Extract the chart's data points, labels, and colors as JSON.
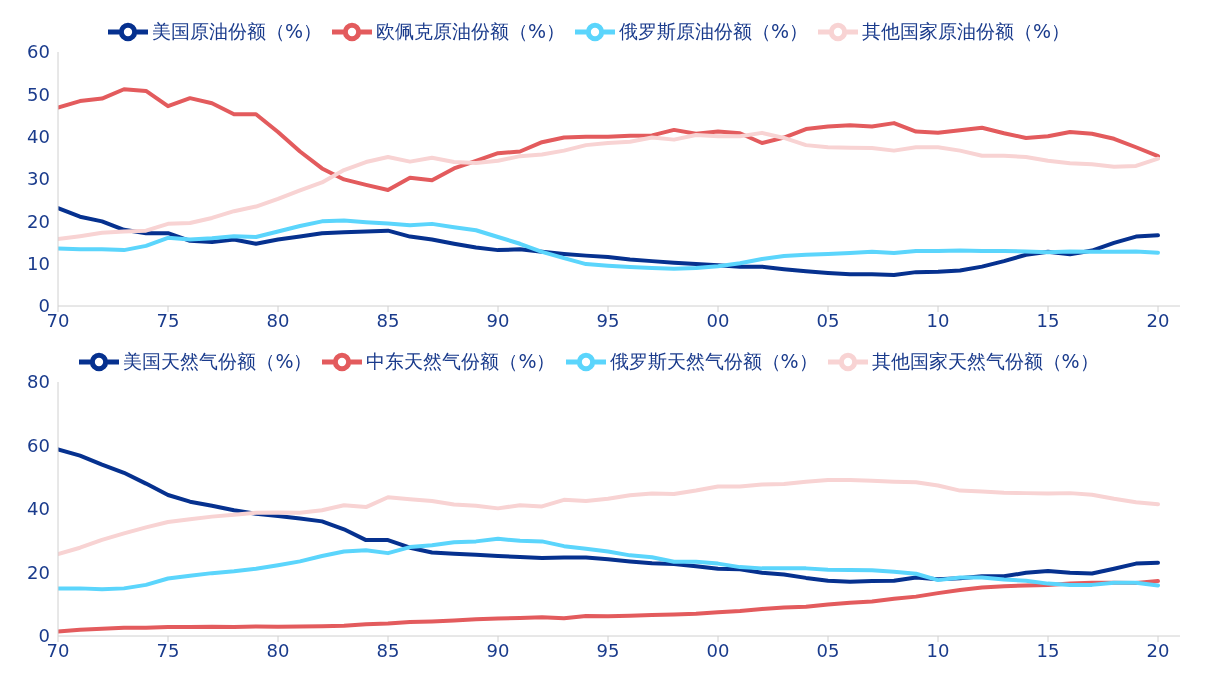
{
  "chart_data": [
    {
      "type": "line",
      "legend": "top",
      "grid": false,
      "marker": "none",
      "line_style": "solid",
      "x": [
        1970,
        1971,
        1972,
        1973,
        1974,
        1975,
        1976,
        1977,
        1978,
        1979,
        1980,
        1981,
        1982,
        1983,
        1984,
        1985,
        1986,
        1987,
        1988,
        1989,
        1990,
        1991,
        1992,
        1993,
        1994,
        1995,
        1996,
        1997,
        1998,
        1999,
        2000,
        2001,
        2002,
        2003,
        2004,
        2005,
        2006,
        2007,
        2008,
        2009,
        2010,
        2011,
        2012,
        2013,
        2014,
        2015,
        2016,
        2017,
        2018,
        2019,
        2020
      ],
      "xlim": [
        1970,
        2021
      ],
      "xticks": [
        {
          "value": 1970,
          "label": "70"
        },
        {
          "value": 1975,
          "label": "75"
        },
        {
          "value": 1980,
          "label": "80"
        },
        {
          "value": 1985,
          "label": "85"
        },
        {
          "value": 1990,
          "label": "90"
        },
        {
          "value": 1995,
          "label": "95"
        },
        {
          "value": 2000,
          "label": "00"
        },
        {
          "value": 2005,
          "label": "05"
        },
        {
          "value": 2010,
          "label": "10"
        },
        {
          "value": 2015,
          "label": "15"
        },
        {
          "value": 2020,
          "label": "20"
        }
      ],
      "ylim": [
        0,
        60
      ],
      "yticks": [
        0,
        10,
        20,
        30,
        40,
        50,
        60
      ],
      "series": [
        {
          "name": "美国原油份额（%）",
          "color": "#06318f",
          "values": [
            23.1,
            21.1,
            20,
            18,
            17.2,
            17.2,
            15.4,
            15.1,
            15.7,
            14.7,
            15.7,
            16.4,
            17.2,
            17.4,
            17.6,
            17.8,
            16.4,
            15.7,
            14.7,
            13.8,
            13.2,
            13.4,
            12.8,
            12.3,
            11.9,
            11.6,
            11.0,
            10.6,
            10.2,
            9.9,
            9.6,
            9.3,
            9.3,
            8.7,
            8.2,
            7.8,
            7.5,
            7.5,
            7.3,
            8.0,
            8.1,
            8.4,
            9.3,
            10.6,
            12.1,
            12.8,
            12.2,
            13.1,
            14.9,
            16.4,
            16.7
          ]
        },
        {
          "name": "欧佩克原油份额（%）",
          "color": "#e35b5d",
          "values": [
            46.9,
            48.4,
            49,
            51.2,
            50.8,
            47.2,
            49.1,
            47.9,
            45.3,
            45.3,
            41.1,
            36.5,
            32.5,
            29.9,
            28.6,
            27.4,
            30.3,
            29.7,
            32.5,
            34.3,
            36.1,
            36.5,
            38.7,
            39.8,
            40,
            40,
            40.2,
            40.3,
            41.6,
            40.7,
            41.2,
            40.8,
            38.5,
            39.8,
            41.8,
            42.4,
            42.7,
            42.4,
            43.2,
            41.2,
            40.9,
            41.5,
            42.1,
            40.8,
            39.7,
            40.1,
            41.1,
            40.7,
            39.5,
            37.5,
            35.4
          ]
        },
        {
          "name": "俄罗斯原油份额（%）",
          "color": "#5bd5fc",
          "values": [
            13.6,
            13.4,
            13.4,
            13.2,
            14.2,
            16.1,
            15.7,
            16,
            16.5,
            16.3,
            17.6,
            18.9,
            20,
            20.2,
            19.8,
            19.5,
            19.1,
            19.4,
            18.6,
            17.9,
            16.3,
            14.7,
            12.8,
            11.3,
            9.9,
            9.5,
            9.2,
            9.0,
            8.8,
            9.0,
            9.4,
            10.1,
            11.1,
            11.8,
            12.1,
            12.3,
            12.5,
            12.8,
            12.5,
            13.0,
            13.0,
            13.1,
            13.0,
            13.0,
            12.9,
            12.7,
            12.9,
            12.8,
            12.8,
            12.9,
            12.6
          ]
        },
        {
          "name": "其他国家原油份额（%）",
          "color": "#f8d3d3",
          "values": [
            15.8,
            16.5,
            17.3,
            17.6,
            17.8,
            19.4,
            19.6,
            20.8,
            22.4,
            23.5,
            25.3,
            27.3,
            29.2,
            32.1,
            34,
            35.2,
            34.1,
            35,
            34,
            33.8,
            34.3,
            35.4,
            35.8,
            36.7,
            38,
            38.5,
            38.8,
            39.8,
            39.3,
            40.4,
            40.1,
            40.1,
            40.9,
            39.7,
            38.0,
            37.5,
            37.4,
            37.3,
            36.7,
            37.5,
            37.5,
            36.7,
            35.5,
            35.5,
            35.2,
            34.3,
            33.7,
            33.5,
            32.9,
            33.1,
            34.8
          ]
        }
      ]
    },
    {
      "type": "line",
      "legend": "top",
      "grid": false,
      "marker": "none",
      "line_style": "solid",
      "x": [
        1970,
        1971,
        1972,
        1973,
        1974,
        1975,
        1976,
        1977,
        1978,
        1979,
        1980,
        1981,
        1982,
        1983,
        1984,
        1985,
        1986,
        1987,
        1988,
        1989,
        1990,
        1991,
        1992,
        1993,
        1994,
        1995,
        1996,
        1997,
        1998,
        1999,
        2000,
        2001,
        2002,
        2003,
        2004,
        2005,
        2006,
        2007,
        2008,
        2009,
        2010,
        2011,
        2012,
        2013,
        2014,
        2015,
        2016,
        2017,
        2018,
        2019,
        2020
      ],
      "xlim": [
        1970,
        2021
      ],
      "xticks": [
        {
          "value": 1970,
          "label": "70"
        },
        {
          "value": 1975,
          "label": "75"
        },
        {
          "value": 1980,
          "label": "80"
        },
        {
          "value": 1985,
          "label": "85"
        },
        {
          "value": 1990,
          "label": "90"
        },
        {
          "value": 1995,
          "label": "95"
        },
        {
          "value": 2000,
          "label": "00"
        },
        {
          "value": 2005,
          "label": "05"
        },
        {
          "value": 2010,
          "label": "10"
        },
        {
          "value": 2015,
          "label": "15"
        },
        {
          "value": 2020,
          "label": "20"
        }
      ],
      "ylim": [
        0,
        80
      ],
      "yticks": [
        0,
        20,
        40,
        60,
        80
      ],
      "series": [
        {
          "name": "美国天然气份额（%）",
          "color": "#06318f",
          "values": [
            58.8,
            56.8,
            54,
            51.4,
            48,
            44.4,
            42.3,
            41,
            39.6,
            38.5,
            37.8,
            37,
            36.1,
            33.6,
            30.2,
            30.2,
            27.8,
            26.3,
            25.9,
            25.6,
            25.2,
            24.9,
            24.6,
            24.7,
            24.7,
            24.2,
            23.5,
            22.9,
            22.7,
            22,
            21.2,
            21,
            19.9,
            19.4,
            18.3,
            17.4,
            17.1,
            17.3,
            17.4,
            18.4,
            17.9,
            18.2,
            18.8,
            18.8,
            19.9,
            20.5,
            19.9,
            19.7,
            21.2,
            22.8,
            23.1
          ]
        },
        {
          "name": "中东天然气份额（%）",
          "color": "#e35b5d",
          "values": [
            1.4,
            2,
            2.3,
            2.6,
            2.6,
            2.8,
            2.8,
            2.9,
            2.8,
            3,
            2.9,
            3,
            3.1,
            3.2,
            3.7,
            3.9,
            4.4,
            4.6,
            4.9,
            5.3,
            5.5,
            5.7,
            5.9,
            5.6,
            6.3,
            6.2,
            6.4,
            6.6,
            6.8,
            7,
            7.5,
            7.9,
            8.5,
            9,
            9.2,
            9.9,
            10.5,
            10.9,
            11.7,
            12.4,
            13.5,
            14.5,
            15.3,
            15.7,
            15.9,
            16.1,
            16.5,
            16.8,
            16.8,
            16.7,
            17.3
          ]
        },
        {
          "name": "俄罗斯天然气份额（%）",
          "color": "#5bd5fc",
          "values": [
            15,
            15,
            14.7,
            15,
            16.1,
            18.1,
            19,
            19.8,
            20.4,
            21.2,
            22.3,
            23.5,
            25.2,
            26.6,
            27,
            26.1,
            28,
            28.6,
            29.5,
            29.8,
            30.6,
            30,
            29.8,
            28.3,
            27.5,
            26.6,
            25.4,
            24.8,
            23.4,
            23.4,
            22.8,
            21.7,
            21.3,
            21.3,
            21.3,
            20.9,
            20.8,
            20.7,
            20.2,
            19.6,
            17.6,
            18.4,
            18.4,
            17.8,
            17.4,
            16.5,
            16.1,
            16.1,
            16.8,
            16.8,
            15.9
          ]
        },
        {
          "name": "其他国家天然气份额（%）",
          "color": "#f8d3d3",
          "values": [
            25.8,
            27.8,
            30.3,
            32.3,
            34.2,
            35.9,
            36.8,
            37.6,
            38.2,
            38.8,
            38.9,
            38.8,
            39.6,
            41.2,
            40.6,
            43.7,
            43.1,
            42.5,
            41.4,
            41,
            40.2,
            41.2,
            40.8,
            42.9,
            42.5,
            43.2,
            44.3,
            44.9,
            44.7,
            45.8,
            47.1,
            47.1,
            47.7,
            47.9,
            48.6,
            49.1,
            49.1,
            48.9,
            48.6,
            48.4,
            47.4,
            45.8,
            45.5,
            45.1,
            45,
            44.9,
            45,
            44.5,
            43.2,
            42.1,
            41.5
          ]
        }
      ]
    }
  ]
}
